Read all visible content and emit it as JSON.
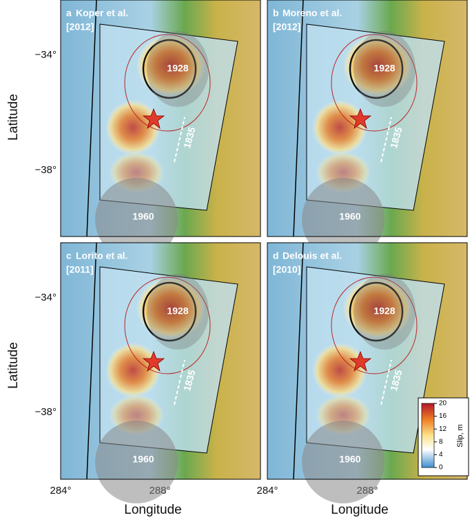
{
  "panels": [
    {
      "letter": "a",
      "authors": "Koper et al.",
      "year": "[2012]",
      "rupture_1928": "1928",
      "rupture_1835": "1835",
      "rupture_1960": "1960"
    },
    {
      "letter": "b",
      "authors": "Moreno et al.",
      "year": "[2012]",
      "rupture_1928": "1928",
      "rupture_1835": "1835",
      "rupture_1960": "1960"
    },
    {
      "letter": "c",
      "authors": "Lorito et al.",
      "year": "[2011]",
      "rupture_1928": "1928",
      "rupture_1835": "1835",
      "rupture_1960": "1960"
    },
    {
      "letter": "d",
      "authors": "Delouis et al.",
      "year": "[2010]",
      "rupture_1928": "1928",
      "rupture_1835": "1835",
      "rupture_1960": "1960"
    }
  ],
  "axes": {
    "y_label": "Latitude",
    "x_label": "Longitude",
    "y_ticks": [
      "−34°",
      "−38°"
    ],
    "x_ticks": [
      "284°",
      "288°"
    ]
  },
  "colorbar": {
    "label": "Slip, m",
    "ticks": [
      20,
      16,
      12,
      8,
      4,
      0
    ]
  }
}
